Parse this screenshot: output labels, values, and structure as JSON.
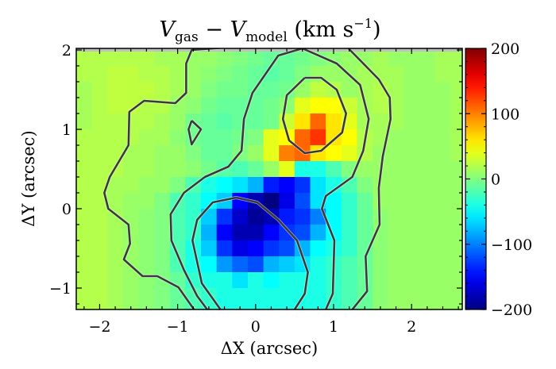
{
  "chart_data": {
    "type": "heatmap",
    "title": {
      "v1": "V",
      "sub1": "gas",
      "minus": " − ",
      "v2": "V",
      "sub2": "model",
      "unit": " (km s",
      "sup": "−1",
      "close": ")"
    },
    "xlabel": "ΔX (arcsec)",
    "ylabel": "ΔY (arcsec)",
    "xlim": [
      -2.3,
      2.65
    ],
    "ylim": [
      -1.27,
      2.02
    ],
    "x_ticks": [
      -2,
      -1,
      0,
      1,
      2
    ],
    "x_tick_labels": [
      "−2",
      "−1",
      "0",
      "1",
      "2"
    ],
    "y_ticks": [
      -1,
      0,
      1,
      2
    ],
    "y_tick_labels": [
      "−1",
      "0",
      "1",
      "2"
    ],
    "colormap": "jet",
    "color_range": [
      -200,
      200
    ],
    "colorbar_ticks": [
      200,
      100,
      0,
      -100,
      -200
    ],
    "colorbar_tick_labels": [
      "200",
      "100",
      "0",
      "−100",
      "−200"
    ],
    "masked_color": "#c0c0c0",
    "contour_color": "#3a3a3a",
    "cell_size": 0.2,
    "x_centers": [
      -2.2,
      -2.0,
      -1.8,
      -1.6,
      -1.4,
      -1.2,
      -1.0,
      -0.8,
      -0.6,
      -0.4,
      -0.2,
      0.0,
      0.2,
      0.4,
      0.6,
      0.8,
      1.0,
      1.2,
      1.4,
      1.6,
      1.8,
      2.0,
      2.2,
      2.4,
      2.6
    ],
    "y_centers": [
      1.9,
      1.7,
      1.5,
      1.3,
      1.1,
      0.9,
      0.7,
      0.5,
      0.3,
      0.1,
      -0.1,
      -0.3,
      -0.5,
      -0.7,
      -0.9,
      -1.1,
      -1.3
    ],
    "values": [
      [
        20,
        20,
        20,
        20,
        20,
        15,
        15,
        10,
        10,
        5,
        0,
        -5,
        -10,
        -10,
        -5,
        0,
        5,
        10,
        10,
        15,
        10,
        10,
        10,
        15,
        15
      ],
      [
        20,
        20,
        25,
        25,
        20,
        20,
        15,
        10,
        5,
        0,
        -5,
        -10,
        -15,
        -10,
        0,
        10,
        10,
        10,
        15,
        15,
        15,
        10,
        10,
        15,
        15
      ],
      [
        15,
        20,
        25,
        25,
        25,
        20,
        15,
        10,
        0,
        -5,
        -5,
        -10,
        -10,
        -5,
        10,
        25,
        20,
        10,
        15,
        20,
        15,
        10,
        10,
        10,
        15
      ],
      [
        15,
        20,
        25,
        25,
        20,
        20,
        10,
        5,
        -5,
        -10,
        -10,
        -10,
        -5,
        5,
        40,
        50,
        50,
        30,
        15,
        20,
        15,
        10,
        10,
        10,
        15
      ],
      [
        15,
        20,
        20,
        20,
        20,
        15,
        10,
        -5,
        -10,
        -15,
        -10,
        -10,
        -5,
        30,
        60,
        110,
        60,
        40,
        15,
        15,
        15,
        10,
        10,
        10,
        15
      ],
      [
        20,
        20,
        20,
        20,
        15,
        15,
        5,
        -5,
        -10,
        -10,
        -5,
        0,
        40,
        50,
        110,
        130,
        60,
        50,
        20,
        15,
        10,
        10,
        10,
        10,
        15
      ],
      [
        20,
        20,
        20,
        15,
        15,
        10,
        10,
        0,
        -10,
        -10,
        0,
        10,
        40,
        100,
        110,
        60,
        50,
        40,
        20,
        10,
        10,
        10,
        10,
        10,
        15
      ],
      [
        20,
        20,
        20,
        15,
        15,
        10,
        10,
        5,
        -5,
        -15,
        -20,
        -10,
        10,
        40,
        -40,
        -40,
        -20,
        0,
        10,
        10,
        10,
        10,
        10,
        10,
        10
      ],
      [
        20,
        20,
        15,
        15,
        10,
        10,
        0,
        -20,
        -40,
        -50,
        -60,
        -80,
        -140,
        -150,
        -130,
        -60,
        -40,
        -20,
        0,
        10,
        10,
        10,
        10,
        10,
        10
      ],
      [
        20,
        20,
        15,
        10,
        10,
        0,
        -20,
        -30,
        -50,
        -70,
        -150,
        -180,
        -200,
        -160,
        -120,
        -60,
        -50,
        -30,
        -10,
        10,
        10,
        10,
        10,
        10,
        10
      ],
      [
        20,
        20,
        15,
        10,
        5,
        0,
        -20,
        -30,
        -70,
        -130,
        -170,
        -190,
        -180,
        -140,
        -130,
        -100,
        -50,
        -30,
        -10,
        5,
        10,
        10,
        10,
        10,
        10
      ],
      [
        20,
        20,
        15,
        10,
        5,
        0,
        -20,
        -30,
        -80,
        -150,
        -180,
        -180,
        -150,
        -130,
        -120,
        -80,
        -50,
        -30,
        -10,
        5,
        10,
        10,
        10,
        10,
        10
      ],
      [
        20,
        20,
        15,
        10,
        5,
        0,
        -20,
        -40,
        -70,
        -130,
        -160,
        -150,
        -130,
        -120,
        -80,
        -50,
        -40,
        -30,
        -10,
        5,
        10,
        10,
        10,
        10,
        10
      ],
      [
        20,
        20,
        15,
        10,
        5,
        0,
        -20,
        -40,
        -50,
        -90,
        -110,
        -120,
        -80,
        -70,
        -60,
        -40,
        -30,
        -20,
        -10,
        5,
        10,
        10,
        10,
        10,
        10
      ],
      [
        20,
        20,
        15,
        10,
        5,
        0,
        -10,
        -30,
        -40,
        -40,
        -60,
        -40,
        -50,
        -40,
        -40,
        -40,
        -30,
        -20,
        -10,
        5,
        10,
        10,
        10,
        10,
        10
      ],
      [
        20,
        20,
        15,
        10,
        5,
        0,
        -10,
        -20,
        -30,
        -40,
        -40,
        -40,
        -40,
        -40,
        -40,
        -40,
        -30,
        -20,
        -10,
        5,
        10,
        10,
        10,
        10,
        10
      ],
      [
        20,
        20,
        15,
        10,
        5,
        0,
        -10,
        -20,
        -30,
        -40,
        -40,
        -40,
        -40,
        -40,
        -40,
        -40,
        -30,
        -20,
        -10,
        5,
        10,
        10,
        10,
        10,
        10
      ]
    ],
    "contours": [
      [
        [
          -0.79,
          -1.27
        ],
        [
          -0.99,
          -0.99
        ],
        [
          -1.26,
          -0.85
        ],
        [
          -1.45,
          -0.85
        ],
        [
          -1.69,
          -0.64
        ],
        [
          -1.61,
          -0.44
        ],
        [
          -1.63,
          -0.2
        ],
        [
          -1.89,
          0.0
        ],
        [
          -1.94,
          0.2
        ],
        [
          -1.87,
          0.4
        ],
        [
          -1.63,
          0.8
        ],
        [
          -1.62,
          1.22
        ],
        [
          -1.43,
          1.36
        ],
        [
          -1.03,
          1.33
        ],
        [
          -0.89,
          1.46
        ],
        [
          -0.89,
          1.83
        ],
        [
          -0.82,
          2.0
        ],
        [
          -0.4,
          2.03
        ]
      ],
      [
        [
          1.19,
          2.02
        ],
        [
          1.58,
          1.63
        ],
        [
          1.72,
          1.4
        ],
        [
          1.73,
          1.13
        ],
        [
          1.63,
          0.66
        ],
        [
          1.58,
          0.26
        ],
        [
          1.59,
          -0.2
        ],
        [
          1.41,
          -0.6
        ],
        [
          1.43,
          -1.04
        ],
        [
          1.24,
          -1.27
        ]
      ],
      [
        [
          -0.62,
          -1.27
        ],
        [
          -0.75,
          -1.1
        ],
        [
          -0.92,
          -0.77
        ],
        [
          -1.08,
          -0.4
        ],
        [
          -1.09,
          -0.07
        ],
        [
          -0.92,
          0.2
        ],
        [
          -0.65,
          0.4
        ],
        [
          -0.35,
          0.53
        ],
        [
          -0.18,
          0.73
        ],
        [
          -0.15,
          1.13
        ],
        [
          -0.04,
          1.46
        ],
        [
          0.29,
          1.93
        ],
        [
          0.6,
          2.02
        ],
        [
          1.04,
          1.83
        ],
        [
          1.34,
          1.56
        ],
        [
          1.45,
          1.13
        ],
        [
          1.38,
          0.73
        ],
        [
          1.24,
          0.4
        ],
        [
          0.9,
          0.16
        ],
        [
          0.85,
          0.0
        ],
        [
          1.01,
          -0.4
        ],
        [
          0.99,
          -1.07
        ],
        [
          0.9,
          -1.27
        ]
      ],
      [
        [
          -0.45,
          -1.27
        ],
        [
          -0.69,
          -0.94
        ],
        [
          -0.81,
          -0.4
        ],
        [
          -0.75,
          -0.14
        ],
        [
          -0.55,
          0.08
        ],
        [
          -0.25,
          0.14
        ],
        [
          0.02,
          0.08
        ],
        [
          0.29,
          -0.14
        ],
        [
          0.53,
          -0.4
        ],
        [
          0.67,
          -0.8
        ],
        [
          0.63,
          -1.07
        ],
        [
          0.5,
          -1.27
        ]
      ],
      [
        [
          0.63,
          1.65
        ],
        [
          0.84,
          1.65
        ],
        [
          1.04,
          1.5
        ],
        [
          1.16,
          1.2
        ],
        [
          1.11,
          0.96
        ],
        [
          0.84,
          0.73
        ],
        [
          0.63,
          0.7
        ],
        [
          0.43,
          0.86
        ],
        [
          0.35,
          1.13
        ],
        [
          0.4,
          1.43
        ],
        [
          0.63,
          1.65
        ]
      ],
      [
        [
          -0.82,
          1.11
        ],
        [
          -0.7,
          1.0
        ],
        [
          -0.82,
          0.81
        ],
        [
          -0.86,
          1.0
        ],
        [
          -0.82,
          1.11
        ]
      ]
    ]
  }
}
